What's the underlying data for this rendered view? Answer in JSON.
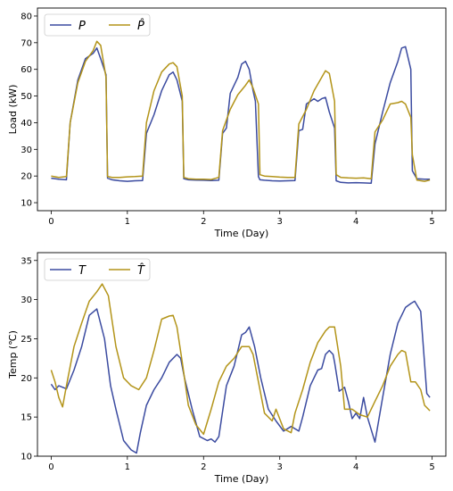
{
  "chart_data": [
    {
      "type": "line",
      "xlabel": "Time (Day)",
      "ylabel": "Load (kW)",
      "xlim": [
        -0.18,
        5.18
      ],
      "ylim": [
        7,
        83
      ],
      "xticks": [
        0,
        1,
        2,
        3,
        4,
        5
      ],
      "xtick_labels": [
        "0",
        "1",
        "2",
        "3",
        "4",
        "5"
      ],
      "yticks": [
        10,
        20,
        30,
        40,
        50,
        60,
        70,
        80
      ],
      "ytick_labels": [
        "10",
        "20",
        "30",
        "40",
        "50",
        "60",
        "70",
        "80"
      ],
      "grid": false,
      "legend_position": "top-left",
      "series": [
        {
          "name": "P",
          "color": "#3b4ba0",
          "x": [
            0,
            0.1,
            0.2,
            0.25,
            0.35,
            0.45,
            0.55,
            0.6,
            0.65,
            0.72,
            0.74,
            0.8,
            0.9,
            1.0,
            1.1,
            1.2,
            1.25,
            1.35,
            1.45,
            1.55,
            1.6,
            1.65,
            1.72,
            1.74,
            1.8,
            1.9,
            2.0,
            2.1,
            2.2,
            2.25,
            2.3,
            2.35,
            2.45,
            2.5,
            2.55,
            2.6,
            2.65,
            2.68,
            2.72,
            2.74,
            2.8,
            2.9,
            3.0,
            3.1,
            3.2,
            3.25,
            3.3,
            3.35,
            3.45,
            3.5,
            3.55,
            3.6,
            3.65,
            3.72,
            3.74,
            3.8,
            3.9,
            4.0,
            4.1,
            4.2,
            4.25,
            4.35,
            4.45,
            4.55,
            4.6,
            4.65,
            4.72,
            4.74,
            4.8,
            4.9,
            4.97
          ],
          "y": [
            19.2,
            18.8,
            18.6,
            40,
            56,
            64,
            66,
            68,
            64,
            58,
            19.2,
            18.6,
            18.2,
            18,
            18.2,
            18.3,
            36,
            43,
            52,
            58,
            59,
            56,
            48,
            19,
            18.6,
            18.5,
            18.4,
            18.3,
            18.4,
            36,
            38,
            51,
            57,
            62,
            63,
            60,
            52,
            48,
            19.8,
            18.6,
            18.4,
            18.2,
            18.1,
            18.2,
            18.3,
            37,
            37.5,
            47,
            49,
            48,
            49,
            49.5,
            44,
            38,
            18.2,
            17.6,
            17.4,
            17.5,
            17.4,
            17.3,
            32,
            44,
            55,
            63,
            68,
            68.5,
            60,
            22,
            19,
            18.8,
            18.8
          ]
        },
        {
          "name": "P̂",
          "color": "#b39419",
          "x": [
            0,
            0.1,
            0.2,
            0.25,
            0.35,
            0.45,
            0.55,
            0.6,
            0.65,
            0.72,
            0.74,
            0.8,
            0.9,
            1.0,
            1.1,
            1.2,
            1.25,
            1.35,
            1.45,
            1.55,
            1.6,
            1.65,
            1.72,
            1.74,
            1.8,
            1.9,
            2.0,
            2.1,
            2.2,
            2.25,
            2.35,
            2.45,
            2.55,
            2.6,
            2.65,
            2.72,
            2.74,
            2.8,
            2.9,
            3.0,
            3.1,
            3.2,
            3.25,
            3.35,
            3.45,
            3.55,
            3.6,
            3.65,
            3.72,
            3.74,
            3.8,
            3.9,
            4.0,
            4.1,
            4.2,
            4.25,
            4.35,
            4.45,
            4.55,
            4.6,
            4.65,
            4.72,
            4.74,
            4.8,
            4.9,
            4.97
          ],
          "y": [
            20,
            19.5,
            19.8,
            40,
            55,
            63,
            67,
            70.5,
            69,
            57,
            19.8,
            19.5,
            19.5,
            19.7,
            19.8,
            20,
            40,
            52,
            59,
            62,
            62.5,
            61,
            50,
            19.5,
            19,
            18.8,
            18.8,
            18.7,
            19.5,
            37,
            45,
            50.5,
            54,
            56,
            53,
            47,
            20.5,
            20,
            19.8,
            19.6,
            19.5,
            19.5,
            39.5,
            45,
            52,
            57,
            59.5,
            58.5,
            48,
            20.5,
            19.5,
            19.3,
            19.2,
            19.3,
            19,
            36.5,
            41,
            47,
            47.5,
            48,
            47,
            42,
            28,
            18.5,
            18,
            18.5
          ]
        }
      ]
    },
    {
      "type": "line",
      "xlabel": "Time (Day)",
      "ylabel": "Temp (℃)",
      "xlim": [
        -0.18,
        5.18
      ],
      "ylim": [
        10,
        36
      ],
      "xticks": [
        0,
        1,
        2,
        3,
        4,
        5
      ],
      "xtick_labels": [
        "0",
        "1",
        "2",
        "3",
        "4",
        "5"
      ],
      "yticks": [
        10,
        15,
        20,
        25,
        30,
        35
      ],
      "ytick_labels": [
        "10",
        "15",
        "20",
        "25",
        "30",
        "35"
      ],
      "grid": false,
      "legend_position": "top-left",
      "series": [
        {
          "name": "T",
          "color": "#3b4ba0",
          "x": [
            0,
            0.05,
            0.1,
            0.15,
            0.2,
            0.3,
            0.4,
            0.5,
            0.6,
            0.7,
            0.78,
            0.85,
            0.95,
            1.05,
            1.12,
            1.17,
            1.25,
            1.35,
            1.45,
            1.55,
            1.65,
            1.7,
            1.75,
            1.85,
            1.95,
            2.05,
            2.1,
            2.15,
            2.2,
            2.3,
            2.4,
            2.5,
            2.55,
            2.6,
            2.67,
            2.75,
            2.85,
            2.95,
            3.05,
            3.1,
            3.15,
            3.25,
            3.3,
            3.4,
            3.5,
            3.55,
            3.6,
            3.65,
            3.7,
            3.72,
            3.78,
            3.85,
            3.9,
            3.95,
            4.0,
            4.05,
            4.1,
            4.15,
            4.25,
            4.35,
            4.45,
            4.55,
            4.65,
            4.72,
            4.77,
            4.85,
            4.93,
            4.97
          ],
          "y": [
            19.2,
            18.5,
            19,
            18.8,
            18.6,
            21,
            24,
            28,
            28.8,
            25,
            19,
            16,
            12,
            10.8,
            10.4,
            13,
            16.5,
            18.5,
            20,
            22,
            23,
            22.5,
            20,
            16,
            12.5,
            12,
            12.2,
            11.8,
            12.5,
            19,
            21.5,
            25.5,
            25.8,
            26.5,
            24,
            20,
            16,
            14.5,
            13.2,
            13.5,
            13.8,
            13.2,
            15,
            19,
            21,
            21.2,
            23,
            23.5,
            23,
            22,
            18.3,
            18.8,
            17,
            14.8,
            15.5,
            14.8,
            17.5,
            15,
            11.8,
            17.5,
            23,
            27,
            29,
            29.5,
            29.8,
            28.5,
            18,
            17.5
          ]
        },
        {
          "name": "T̂",
          "color": "#b39419",
          "x": [
            0,
            0.05,
            0.1,
            0.15,
            0.2,
            0.3,
            0.4,
            0.5,
            0.6,
            0.67,
            0.75,
            0.85,
            0.95,
            1.05,
            1.15,
            1.25,
            1.35,
            1.45,
            1.55,
            1.6,
            1.65,
            1.72,
            1.8,
            1.9,
            2.0,
            2.1,
            2.2,
            2.3,
            2.4,
            2.5,
            2.6,
            2.65,
            2.72,
            2.8,
            2.9,
            2.95,
            3.05,
            3.15,
            3.2,
            3.3,
            3.4,
            3.5,
            3.6,
            3.65,
            3.72,
            3.8,
            3.85,
            3.95,
            4.05,
            4.15,
            4.25,
            4.35,
            4.45,
            4.55,
            4.6,
            4.65,
            4.72,
            4.78,
            4.85,
            4.9,
            4.97
          ],
          "y": [
            21,
            19.5,
            17.5,
            16.3,
            19,
            24,
            27,
            29.8,
            31,
            32,
            30.5,
            24,
            20,
            19,
            18.5,
            20,
            23.5,
            27.5,
            27.9,
            28,
            26.5,
            22,
            16.5,
            14,
            12.8,
            16,
            19.5,
            21.5,
            22.5,
            24,
            24,
            23,
            19.5,
            15.5,
            14.5,
            16,
            13.5,
            13,
            15.5,
            18.5,
            22,
            24.5,
            26,
            26.5,
            26.5,
            21.5,
            16,
            16,
            15.3,
            15,
            17,
            19,
            21.5,
            23,
            23.5,
            23.3,
            19.5,
            19.5,
            18.5,
            16.5,
            15.8
          ]
        }
      ]
    }
  ]
}
